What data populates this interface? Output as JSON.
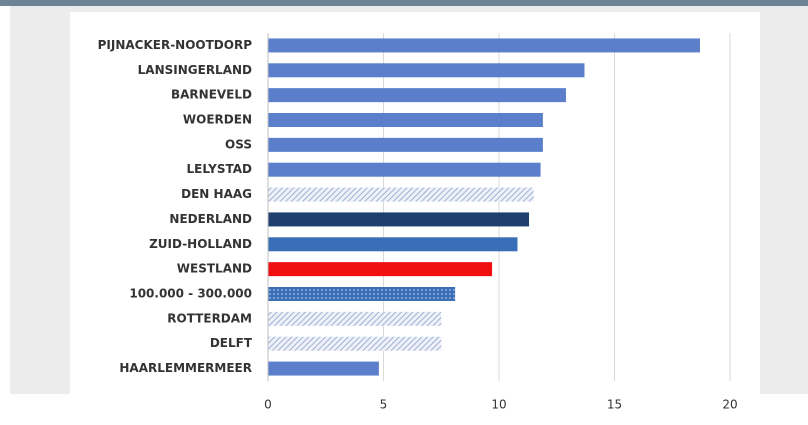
{
  "chart_data": {
    "type": "bar",
    "orientation": "horizontal",
    "categories": [
      "PIJNACKER-NOOTDORP",
      "LANSINGERLAND",
      "BARNEVELD",
      "WOERDEN",
      "OSS",
      "LELYSTAD",
      "DEN HAAG",
      "NEDERLAND",
      "ZUID-HOLLAND",
      "WESTLAND",
      "100.000 - 300.000",
      "ROTTERDAM",
      "DELFT",
      "HAARLEMMERMEER"
    ],
    "values": [
      18.7,
      13.7,
      12.9,
      11.9,
      11.9,
      11.8,
      11.5,
      11.3,
      10.8,
      9.7,
      8.1,
      7.5,
      7.5,
      4.8
    ],
    "colors": [
      "#5b7fcb",
      "#5b7fcb",
      "#5b7fcb",
      "#5b7fcb",
      "#5b7fcb",
      "#5b7fcb",
      "#9fb1d6",
      "#1f3f6e",
      "#3a6fb8",
      "#f01010",
      "#3a6fb8",
      "#9fb1d6",
      "#9fb1d6",
      "#5b7fcb"
    ],
    "patterns": [
      "solid",
      "solid",
      "solid",
      "solid",
      "solid",
      "solid",
      "hatch",
      "solid",
      "solid",
      "solid",
      "dots",
      "hatch",
      "hatch",
      "solid"
    ],
    "xlim": [
      0,
      20
    ],
    "xticks": [
      0,
      5,
      10,
      15,
      20
    ],
    "grid": true
  }
}
